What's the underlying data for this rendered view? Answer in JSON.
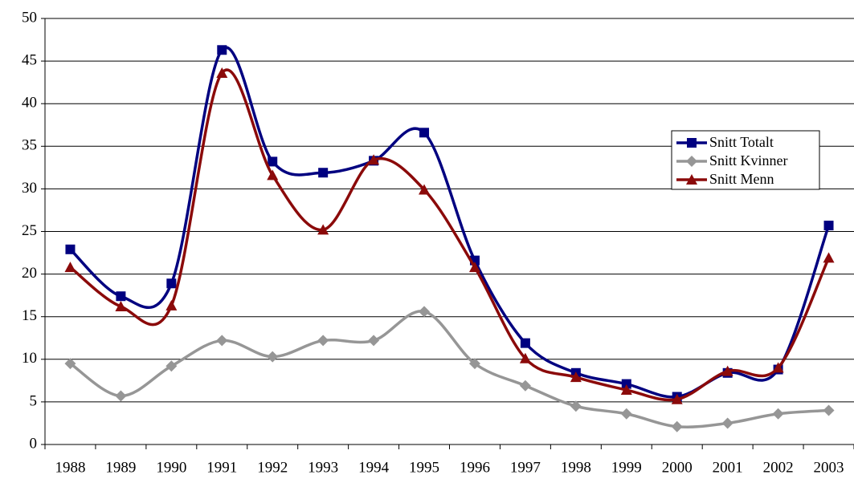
{
  "chart_data": {
    "type": "line",
    "smooth": true,
    "categories": [
      "1988",
      "1989",
      "1990",
      "1991",
      "1992",
      "1993",
      "1994",
      "1995",
      "1996",
      "1997",
      "1998",
      "1999",
      "2000",
      "2001",
      "2002",
      "2003"
    ],
    "series": [
      {
        "name": "Snitt Totalt",
        "color": "#000080",
        "marker": "square",
        "values": [
          22.9,
          17.4,
          18.9,
          46.3,
          33.2,
          31.9,
          33.3,
          36.6,
          21.6,
          11.9,
          8.4,
          7.1,
          5.6,
          8.4,
          8.8,
          25.7
        ]
      },
      {
        "name": "Snitt Kvinner",
        "color": "#969696",
        "marker": "diamond",
        "values": [
          9.5,
          5.7,
          9.2,
          12.2,
          10.3,
          12.2,
          12.2,
          15.6,
          9.5,
          6.9,
          4.5,
          3.6,
          2.1,
          2.5,
          3.6,
          4.0
        ]
      },
      {
        "name": "Snitt Menn",
        "color": "#8b0a0a",
        "marker": "triangle",
        "values": [
          20.8,
          16.2,
          16.3,
          43.6,
          31.6,
          25.2,
          33.4,
          29.9,
          20.8,
          10.1,
          7.9,
          6.4,
          5.3,
          8.6,
          9.0,
          21.9
        ]
      }
    ],
    "ylim": [
      0,
      50
    ],
    "yticks": [
      0,
      5,
      10,
      15,
      20,
      25,
      30,
      35,
      40,
      45,
      50
    ],
    "grid": true,
    "legend": "right"
  }
}
